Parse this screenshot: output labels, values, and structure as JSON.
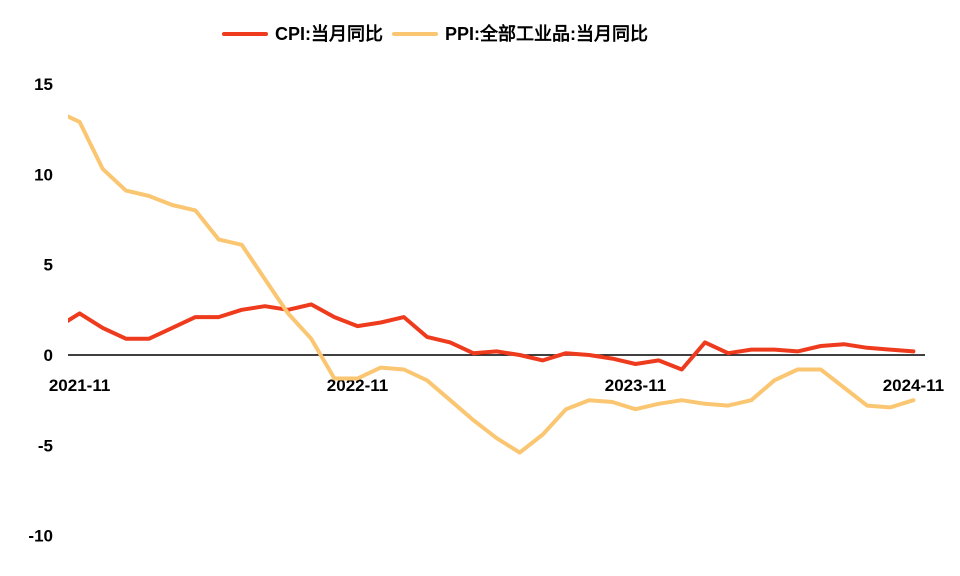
{
  "page": {
    "background": "#FFFFFF"
  },
  "chart_data": {
    "type": "line",
    "title": "",
    "xlabel": "",
    "ylabel": "",
    "grid": false,
    "legend_position": "top",
    "axis_color": "#000000",
    "tick_label_color": "#000000",
    "ylim": [
      -10,
      15
    ],
    "y_ticks": [
      15,
      10,
      5,
      0,
      -5,
      -10
    ],
    "x_tick_labels": [
      "2021-11",
      "2022-11",
      "2023-11",
      "2024-11"
    ],
    "x": [
      "2021-11",
      "2021-12",
      "2022-01",
      "2022-02",
      "2022-03",
      "2022-04",
      "2022-05",
      "2022-06",
      "2022-07",
      "2022-08",
      "2022-09",
      "2022-10",
      "2022-11",
      "2022-12",
      "2023-01",
      "2023-02",
      "2023-03",
      "2023-04",
      "2023-05",
      "2023-06",
      "2023-07",
      "2023-08",
      "2023-09",
      "2023-10",
      "2023-11",
      "2023-12",
      "2024-01",
      "2024-02",
      "2024-03",
      "2024-04",
      "2024-05",
      "2024-06",
      "2024-07",
      "2024-08",
      "2024-09",
      "2024-10",
      "2024-11"
    ],
    "series": [
      {
        "name": "CPI:当月同比",
        "color": "#EE3B1D",
        "values": [
          2.3,
          1.5,
          0.9,
          0.9,
          1.5,
          2.1,
          2.1,
          2.5,
          2.7,
          2.5,
          2.8,
          2.1,
          1.6,
          1.8,
          2.1,
          1.0,
          0.7,
          0.1,
          0.2,
          0.0,
          -0.3,
          0.1,
          0.0,
          -0.2,
          -0.5,
          -0.3,
          -0.8,
          0.7,
          0.1,
          0.3,
          0.3,
          0.2,
          0.5,
          0.6,
          0.4,
          0.3,
          0.2
        ]
      },
      {
        "name": "PPI:全部工业品:当月同比",
        "color": "#FBC672",
        "values": [
          12.9,
          10.3,
          9.1,
          8.8,
          8.3,
          8.0,
          6.4,
          6.1,
          4.2,
          2.3,
          0.9,
          -1.3,
          -1.3,
          -0.7,
          -0.8,
          -1.4,
          -2.5,
          -3.6,
          -4.6,
          -5.4,
          -4.4,
          -3.0,
          -2.5,
          -2.6,
          -3.0,
          -2.7,
          -2.5,
          -2.7,
          -2.8,
          -2.5,
          -1.4,
          -0.8,
          -0.8,
          -1.8,
          -2.8,
          -2.9,
          -2.5
        ]
      }
    ],
    "leadin": {
      "x": "2021-10",
      "values": [
        1.5,
        13.5
      ]
    }
  }
}
